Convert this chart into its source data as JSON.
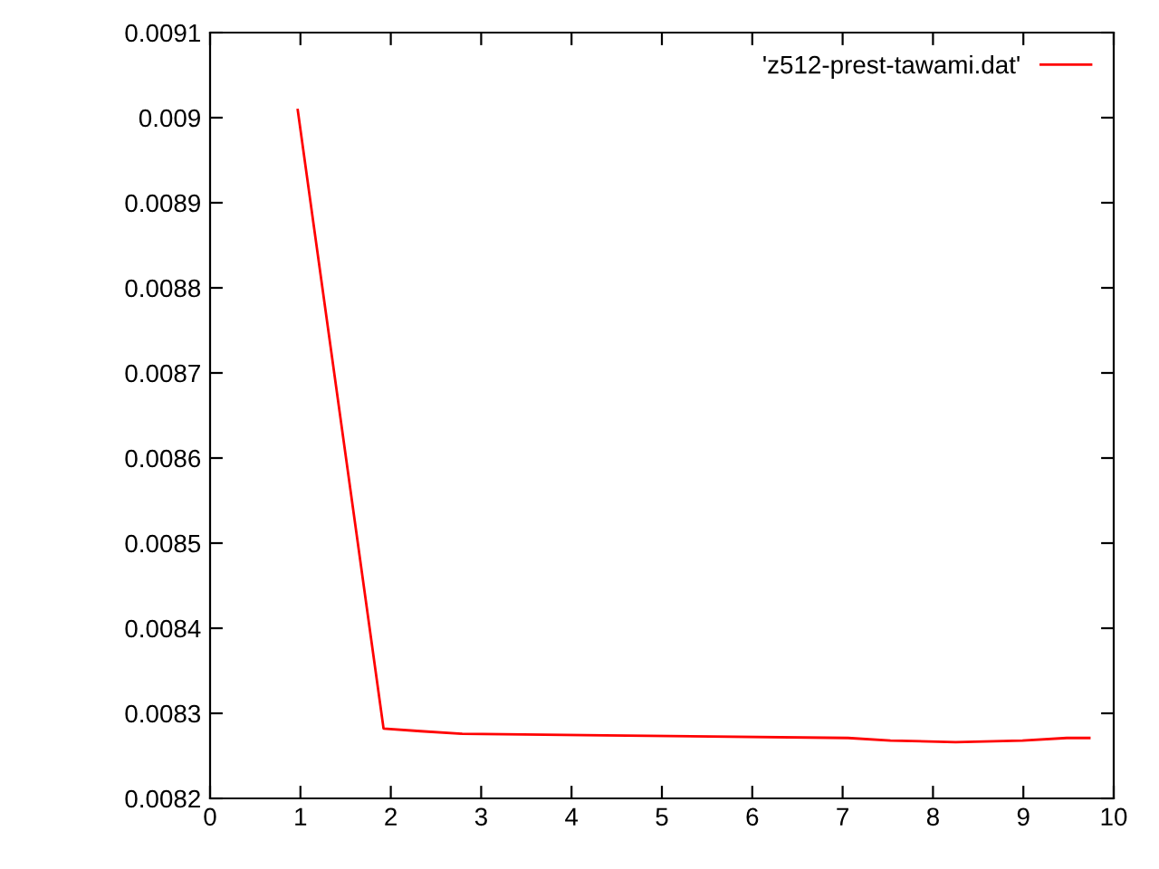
{
  "chart_data": {
    "type": "line",
    "xlim": [
      0,
      10
    ],
    "ylim": [
      0.0082,
      0.0091
    ],
    "xticks": [
      0,
      1,
      2,
      3,
      4,
      5,
      6,
      7,
      8,
      9,
      10
    ],
    "yticks": [
      0.0082,
      0.0083,
      0.0084,
      0.0085,
      0.0086,
      0.0087,
      0.0088,
      0.0089,
      0.009,
      0.0091
    ],
    "series": [
      {
        "name": "'z512-prest-tawami.dat'",
        "color": "#ff0000",
        "x": [
          0.97,
          1.92,
          2.33,
          2.79,
          4.37,
          7.06,
          7.53,
          8.25,
          8.99,
          9.48,
          9.73
        ],
        "values": [
          0.009009,
          0.008282,
          0.008279,
          0.008276,
          0.008274,
          0.008271,
          0.008268,
          0.008266,
          0.008268,
          0.008271,
          0.008271
        ]
      }
    ],
    "legend": "top right",
    "grid": false
  }
}
